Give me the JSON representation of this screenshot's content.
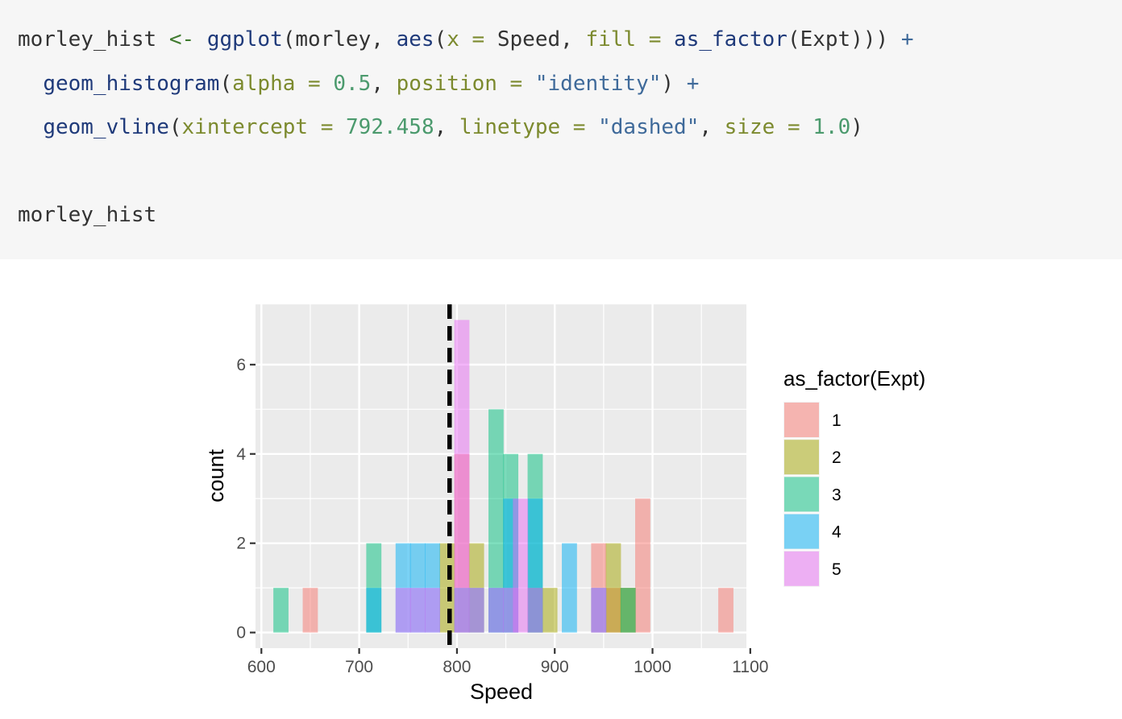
{
  "code": {
    "line1": {
      "var": "morley_hist",
      "assign": "<-",
      "fn": "ggplot",
      "open": "(morley, ",
      "aes": "aes",
      "aes_open": "(",
      "arg_x": "x",
      "eq1": " = ",
      "speed": "Speed, ",
      "arg_fill": "fill",
      "eq2": " = ",
      "fn2": "as_factor",
      "rest": "(Expt))) ",
      "plus": "+"
    },
    "line2": {
      "fn": "geom_histogram",
      "open": "(",
      "arg_alpha": "alpha",
      "eq1": " = ",
      "alpha_val": "0.5",
      "comma": ", ",
      "arg_position": "position",
      "eq2": " = ",
      "position_val": "\"identity\"",
      "close": ") ",
      "plus": "+"
    },
    "line3": {
      "fn": "geom_vline",
      "open": "(",
      "arg_xint": "xintercept",
      "eq1": " = ",
      "xint_val": "792.458",
      "comma1": ", ",
      "arg_linetype": "linetype",
      "eq2": " = ",
      "linetype_val": "\"dashed\"",
      "comma2": ", ",
      "arg_size": "size",
      "eq3": " = ",
      "size_val": "1.0",
      "close": ")"
    },
    "line5": "morley_hist"
  },
  "chart_data": {
    "type": "bar",
    "subtype": "histogram",
    "position": "identity",
    "alpha": 0.5,
    "xlabel": "Speed",
    "ylabel": "count",
    "xlim": [
      594,
      1096
    ],
    "ylim": [
      -0.35,
      7.35
    ],
    "xticks": [
      600,
      700,
      800,
      900,
      1000,
      1100
    ],
    "yticks": [
      0,
      2,
      4,
      6
    ],
    "bin_width": 15.5,
    "vline": {
      "x": 792.458,
      "linetype": "dashed"
    },
    "legend": {
      "title": "as_factor(Expt)",
      "placement": "right"
    },
    "panel_background": "#ebebeb",
    "grid": true,
    "series": [
      {
        "name": "1",
        "color": "#F8766D",
        "bins": [
          [
            650,
            1
          ],
          [
            805,
            4
          ],
          [
            945,
            2
          ],
          [
            960,
            1
          ],
          [
            975,
            1
          ],
          [
            990,
            3
          ],
          [
            1075,
            1
          ]
        ]
      },
      {
        "name": "2",
        "color": "#A3A500",
        "bins": [
          [
            790,
            2
          ],
          [
            820,
            2
          ],
          [
            880,
            1
          ],
          [
            895,
            1
          ],
          [
            960,
            2
          ],
          [
            975,
            1
          ]
        ]
      },
      {
        "name": "3",
        "color": "#00BF7D",
        "bins": [
          [
            620,
            1
          ],
          [
            715,
            2
          ],
          [
            840,
            5
          ],
          [
            855,
            4
          ],
          [
            880,
            4
          ],
          [
            975,
            1
          ]
        ]
      },
      {
        "name": "4",
        "color": "#00B0F6",
        "bins": [
          [
            715,
            1
          ],
          [
            745,
            2
          ],
          [
            760,
            2
          ],
          [
            775,
            2
          ],
          [
            805,
            1
          ],
          [
            820,
            1
          ],
          [
            840,
            1
          ],
          [
            855,
            3
          ],
          [
            880,
            3
          ],
          [
            915,
            2
          ],
          [
            945,
            1
          ]
        ]
      },
      {
        "name": "5",
        "color": "#E76BF3",
        "bins": [
          [
            745,
            1
          ],
          [
            760,
            1
          ],
          [
            775,
            1
          ],
          [
            805,
            7
          ],
          [
            820,
            1
          ],
          [
            840,
            1
          ],
          [
            855,
            1
          ],
          [
            865,
            3
          ],
          [
            880,
            1
          ],
          [
            945,
            1
          ]
        ]
      }
    ]
  }
}
